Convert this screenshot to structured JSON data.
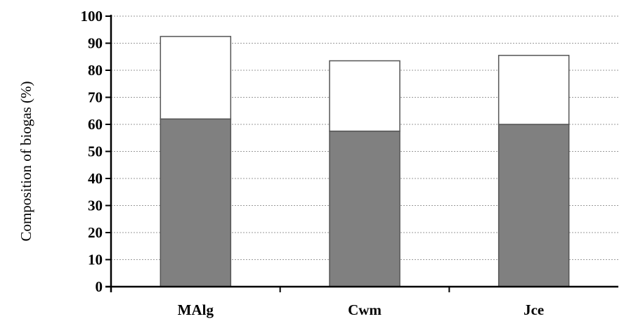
{
  "chart_data": {
    "type": "bar",
    "stacked": true,
    "categories": [
      "MAlg",
      "Cwm",
      "Jce"
    ],
    "series": [
      {
        "values": [
          62,
          57.5,
          60
        ],
        "color": "#808080"
      },
      {
        "values": [
          30.5,
          26,
          25.5
        ],
        "color": "#ffffff"
      }
    ],
    "totals": [
      92.5,
      83.5,
      85.5
    ],
    "title": "",
    "xlabel": "",
    "ylabel": "Composition of biogas (%)",
    "ylim": [
      0,
      100
    ],
    "yticks": [
      "0",
      "10",
      "20",
      "30",
      "40",
      "50",
      "60",
      "70",
      "80",
      "90",
      "100"
    ],
    "grid": true,
    "grid_style": "dotted horizontal",
    "legend": "none"
  }
}
